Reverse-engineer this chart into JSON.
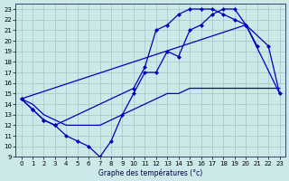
{
  "background_color": "#cce8e8",
  "grid_color": "#99bbbb",
  "line_color": "#0000bb",
  "xlabel": "Graphe des températures (°c)",
  "xlim": [
    -0.5,
    23.5
  ],
  "ylim": [
    9,
    23.5
  ],
  "xticks": [
    0,
    1,
    2,
    3,
    4,
    5,
    6,
    7,
    8,
    9,
    10,
    11,
    12,
    13,
    14,
    15,
    16,
    17,
    18,
    19,
    20,
    21,
    22,
    23
  ],
  "yticks": [
    9,
    10,
    11,
    12,
    13,
    14,
    15,
    16,
    17,
    18,
    19,
    20,
    21,
    22,
    23
  ],
  "curve1_x": [
    0,
    1,
    2,
    3,
    4,
    5,
    6,
    7,
    8,
    9,
    10,
    11,
    12,
    13,
    14,
    15,
    16,
    17,
    18,
    19,
    20,
    21
  ],
  "curve1_y": [
    14.5,
    13.5,
    12.5,
    12.0,
    11.0,
    10.5,
    10.0,
    9.0,
    10.5,
    13.0,
    15.0,
    17.0,
    17.0,
    19.0,
    18.5,
    21.0,
    21.5,
    22.5,
    23.0,
    23.0,
    21.5,
    19.5
  ],
  "curve2_x": [
    0,
    1,
    2,
    3,
    10,
    11,
    12,
    13,
    14,
    15,
    16,
    17,
    18,
    19,
    20,
    22,
    23
  ],
  "curve2_y": [
    14.5,
    13.5,
    12.5,
    12.0,
    15.5,
    17.5,
    21.0,
    21.5,
    22.5,
    23.0,
    23.0,
    23.0,
    22.5,
    22.0,
    21.5,
    19.5,
    15.0
  ],
  "curve3_x": [
    0,
    1,
    2,
    3,
    4,
    5,
    6,
    7,
    8,
    9,
    10,
    11,
    12,
    13,
    14,
    15,
    16,
    17,
    18,
    19,
    20,
    21,
    22,
    23
  ],
  "curve3_y": [
    14.5,
    14.0,
    13.0,
    12.5,
    12.0,
    12.0,
    12.0,
    12.0,
    12.5,
    13.0,
    13.5,
    14.0,
    14.5,
    15.0,
    15.0,
    15.5,
    15.5,
    15.5,
    15.5,
    15.5,
    15.5,
    15.5,
    15.5,
    15.5
  ],
  "curve4_x": [
    0,
    20,
    23
  ],
  "curve4_y": [
    14.5,
    21.5,
    15.0
  ]
}
